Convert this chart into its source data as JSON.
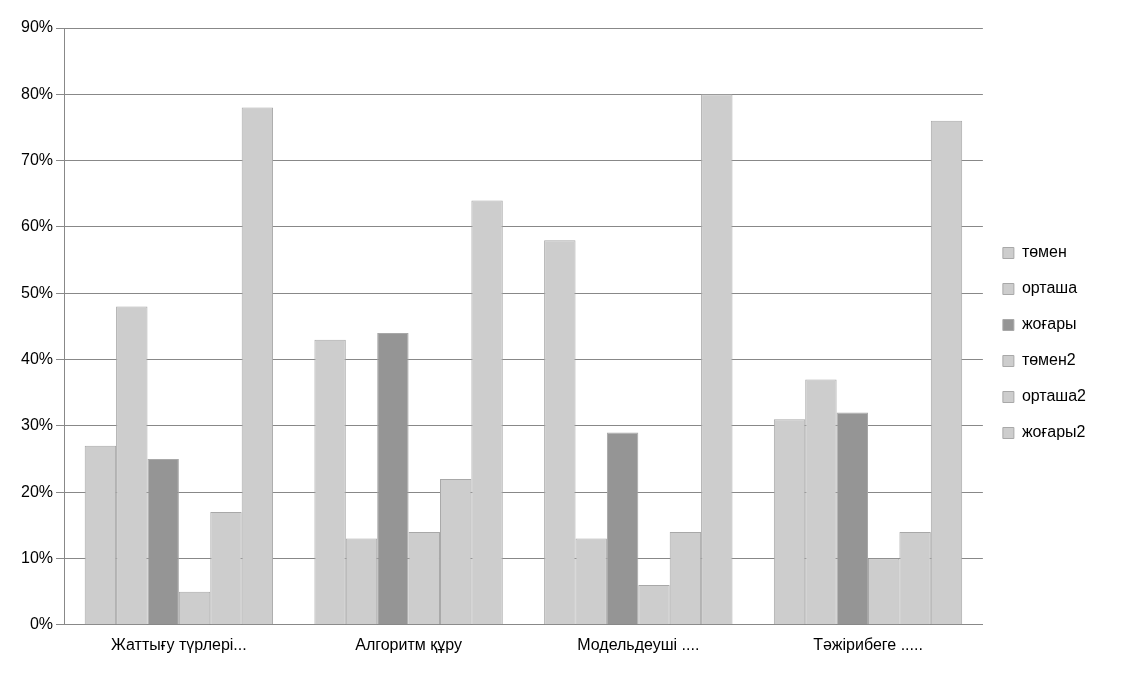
{
  "chart_data": {
    "type": "bar",
    "categories": [
      "Жаттығу түрлері...",
      "Алгоритм құру",
      "Модельдеуші ....",
      "Тәжірибеге ....."
    ],
    "series": [
      {
        "name": "төмен",
        "color": "#cdcdcd",
        "values": [
          27,
          43,
          58,
          31
        ]
      },
      {
        "name": "орташа",
        "color": "#cdcdcd",
        "values": [
          48,
          13,
          13,
          37
        ]
      },
      {
        "name": "жоғары",
        "color": "#959595",
        "values": [
          25,
          44,
          29,
          32
        ]
      },
      {
        "name": "төмен2",
        "color": "#cdcdcd",
        "values": [
          5,
          14,
          6,
          10
        ]
      },
      {
        "name": "орташа2",
        "color": "#cdcdcd",
        "values": [
          17,
          22,
          14,
          14
        ]
      },
      {
        "name": "жоғары2",
        "color": "#cdcdcd",
        "values": [
          78,
          64,
          80,
          76
        ]
      }
    ],
    "ylim": [
      0,
      90
    ],
    "yticks": [
      {
        "value": 0,
        "label": "0%"
      },
      {
        "value": 10,
        "label": "10%"
      },
      {
        "value": 20,
        "label": "20%"
      },
      {
        "value": 30,
        "label": "30%"
      },
      {
        "value": 40,
        "label": "40%"
      },
      {
        "value": 50,
        "label": "50%"
      },
      {
        "value": 60,
        "label": "60%"
      },
      {
        "value": 70,
        "label": "70%"
      },
      {
        "value": 80,
        "label": "80%"
      },
      {
        "value": 90,
        "label": "90%"
      }
    ],
    "grid": "y",
    "legend": "right"
  }
}
